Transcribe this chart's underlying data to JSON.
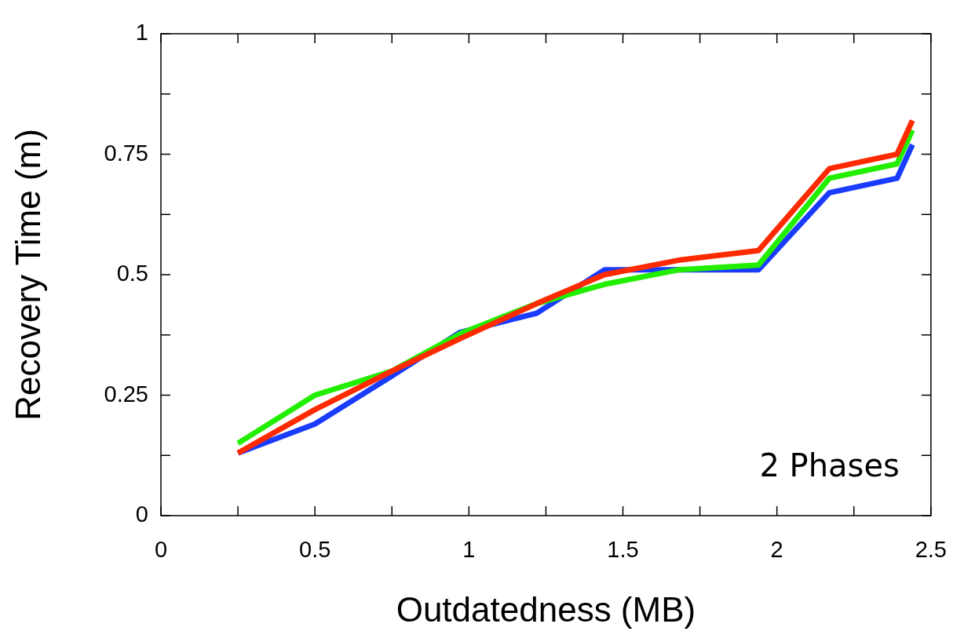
{
  "chart_data": {
    "type": "line",
    "xlabel": "Outdatedness (MB)",
    "ylabel": "Recovery Time (m)",
    "xlim": [
      0,
      2.5
    ],
    "ylim": [
      0,
      1
    ],
    "xticks": [
      0,
      {
        "value": 0.25,
        "label": null
      },
      0.5,
      {
        "value": 0.75,
        "label": null
      },
      1,
      {
        "value": 1.25,
        "label": null
      },
      1.5,
      {
        "value": 1.75,
        "label": null
      },
      2,
      {
        "value": 2.25,
        "label": null
      },
      2.5
    ],
    "yticks": [
      0,
      {
        "value": 0.125,
        "label": null
      },
      0.25,
      {
        "value": 0.375,
        "label": null
      },
      0.5,
      {
        "value": 0.625,
        "label": null
      },
      0.75,
      {
        "value": 0.875,
        "label": null
      },
      1
    ],
    "grid": false,
    "legend": false,
    "marker": "none",
    "line_style": "solid",
    "annotations": [
      "2 Phases"
    ],
    "series": [
      {
        "color": "#ff2a00",
        "x": [
          0.25,
          0.5,
          0.75,
          0.98,
          1.22,
          1.44,
          1.68,
          1.94,
          2.17,
          2.39,
          2.44
        ],
        "values": [
          0.13,
          0.22,
          0.3,
          0.37,
          0.44,
          0.5,
          0.53,
          0.55,
          0.72,
          0.75,
          0.82
        ]
      },
      {
        "color": "#22ee00",
        "x": [
          0.25,
          0.5,
          0.75,
          0.98,
          1.22,
          1.44,
          1.68,
          1.94,
          2.17,
          2.39,
          2.44
        ],
        "values": [
          0.15,
          0.25,
          0.3,
          0.38,
          0.44,
          0.48,
          0.51,
          0.52,
          0.7,
          0.73,
          0.8
        ]
      },
      {
        "color": "#1a3cff",
        "x": [
          0.25,
          0.5,
          0.75,
          0.97,
          1.22,
          1.44,
          1.68,
          1.94,
          2.17,
          2.39,
          2.44
        ],
        "values": [
          0.13,
          0.19,
          0.29,
          0.38,
          0.42,
          0.51,
          0.51,
          0.51,
          0.67,
          0.7,
          0.77
        ]
      }
    ]
  }
}
